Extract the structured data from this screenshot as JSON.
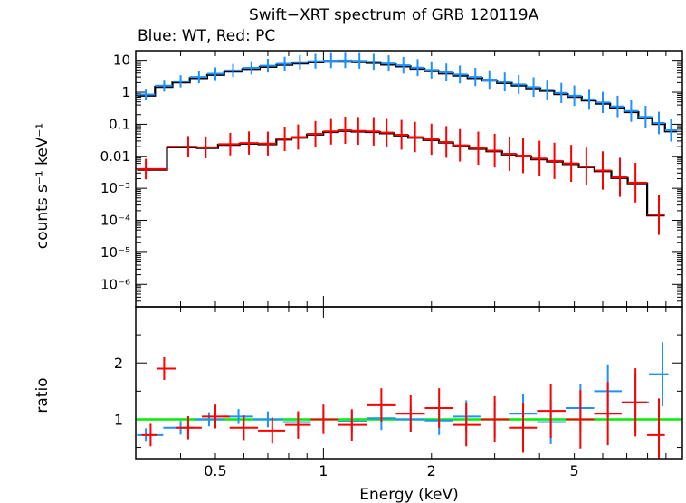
{
  "chart_data": [
    {
      "type": "scatter",
      "title": "Swift−XRT spectrum of GRB 120119A",
      "subtitle": "Blue: WT, Red: PC",
      "xlabel": "Energy (keV)",
      "ylabel": "counts s⁻¹ keV⁻¹",
      "xscale": "log",
      "yscale": "log",
      "xlim": [
        0.3,
        10
      ],
      "ylim": [
        2e-07,
        20
      ],
      "x_ticks": [
        {
          "value": 0.5,
          "label": "0.5"
        },
        {
          "value": 1,
          "label": "1"
        },
        {
          "value": 2,
          "label": "2"
        },
        {
          "value": 5,
          "label": "5"
        }
      ],
      "y_ticks": [
        {
          "value": 10,
          "label": "10"
        },
        {
          "value": 1,
          "label": "1"
        },
        {
          "value": 0.1,
          "label": "0.1"
        },
        {
          "value": 0.01,
          "label": "0.01"
        },
        {
          "value": 0.001,
          "label": "10⁻³"
        },
        {
          "value": 0.0001,
          "label": "10⁻⁴"
        },
        {
          "value": 1e-05,
          "label": "10⁻⁵"
        },
        {
          "value": 1e-06,
          "label": "10⁻⁶"
        }
      ],
      "series": [
        {
          "color": "#1e90ff",
          "points": [
            {
              "x": 0.32,
              "y": 0.85
            },
            {
              "x": 0.36,
              "y": 1.6
            },
            {
              "x": 0.4,
              "y": 2.2
            },
            {
              "x": 0.45,
              "y": 3.0
            },
            {
              "x": 0.5,
              "y": 3.8
            },
            {
              "x": 0.56,
              "y": 4.8
            },
            {
              "x": 0.63,
              "y": 5.8
            },
            {
              "x": 0.7,
              "y": 6.8
            },
            {
              "x": 0.78,
              "y": 7.8
            },
            {
              "x": 0.86,
              "y": 8.7
            },
            {
              "x": 0.95,
              "y": 9.4
            },
            {
              "x": 1.05,
              "y": 9.8
            },
            {
              "x": 1.15,
              "y": 9.9
            },
            {
              "x": 1.26,
              "y": 9.6
            },
            {
              "x": 1.38,
              "y": 9.0
            },
            {
              "x": 1.52,
              "y": 8.0
            },
            {
              "x": 1.67,
              "y": 7.0
            },
            {
              "x": 1.83,
              "y": 5.9
            },
            {
              "x": 2.0,
              "y": 5.0
            },
            {
              "x": 2.2,
              "y": 4.2
            },
            {
              "x": 2.4,
              "y": 3.6
            },
            {
              "x": 2.65,
              "y": 3.0
            },
            {
              "x": 2.9,
              "y": 2.5
            },
            {
              "x": 3.2,
              "y": 2.1
            },
            {
              "x": 3.5,
              "y": 1.75
            },
            {
              "x": 3.85,
              "y": 1.45
            },
            {
              "x": 4.2,
              "y": 1.2
            },
            {
              "x": 4.6,
              "y": 0.95
            },
            {
              "x": 5.0,
              "y": 0.78
            },
            {
              "x": 5.5,
              "y": 0.6
            },
            {
              "x": 6.0,
              "y": 0.48
            },
            {
              "x": 6.6,
              "y": 0.36
            },
            {
              "x": 7.2,
              "y": 0.26
            },
            {
              "x": 7.9,
              "y": 0.17
            },
            {
              "x": 8.6,
              "y": 0.11
            },
            {
              "x": 9.3,
              "y": 0.065
            }
          ]
        },
        {
          "color": "#ff0000",
          "points": [
            {
              "x": 0.32,
              "y": 0.004
            },
            {
              "x": 0.42,
              "y": 0.02
            },
            {
              "x": 0.47,
              "y": 0.019
            },
            {
              "x": 0.55,
              "y": 0.024
            },
            {
              "x": 0.62,
              "y": 0.026
            },
            {
              "x": 0.7,
              "y": 0.025
            },
            {
              "x": 0.78,
              "y": 0.035
            },
            {
              "x": 0.85,
              "y": 0.04
            },
            {
              "x": 0.95,
              "y": 0.05
            },
            {
              "x": 1.05,
              "y": 0.06
            },
            {
              "x": 1.15,
              "y": 0.065
            },
            {
              "x": 1.25,
              "y": 0.062
            },
            {
              "x": 1.38,
              "y": 0.06
            },
            {
              "x": 1.5,
              "y": 0.055
            },
            {
              "x": 1.65,
              "y": 0.047
            },
            {
              "x": 1.8,
              "y": 0.04
            },
            {
              "x": 2.0,
              "y": 0.034
            },
            {
              "x": 2.2,
              "y": 0.028
            },
            {
              "x": 2.4,
              "y": 0.022
            },
            {
              "x": 2.7,
              "y": 0.018
            },
            {
              "x": 3.0,
              "y": 0.015
            },
            {
              "x": 3.3,
              "y": 0.012
            },
            {
              "x": 3.6,
              "y": 0.0105
            },
            {
              "x": 4.0,
              "y": 0.0085
            },
            {
              "x": 4.4,
              "y": 0.0072
            },
            {
              "x": 4.9,
              "y": 0.006
            },
            {
              "x": 5.4,
              "y": 0.0048
            },
            {
              "x": 6.0,
              "y": 0.0036
            },
            {
              "x": 6.7,
              "y": 0.0022
            },
            {
              "x": 7.4,
              "y": 0.0015
            },
            {
              "x": 8.6,
              "y": 0.00015
            }
          ]
        }
      ]
    },
    {
      "type": "scatter",
      "xlabel": "Energy (keV)",
      "ylabel": "ratio",
      "xscale": "log",
      "xlim": [
        0.3,
        10
      ],
      "ylim": [
        0.3,
        3.0
      ],
      "y_ticks": [
        {
          "value": 1,
          "label": "1"
        },
        {
          "value": 2,
          "label": "2"
        }
      ],
      "reference_line": {
        "y": 1,
        "color": "#00ee00"
      },
      "series": [
        {
          "color": "#1e90ff",
          "points": [
            {
              "x": 0.32,
              "y": 0.72
            },
            {
              "x": 0.4,
              "y": 0.85
            },
            {
              "x": 0.48,
              "y": 1.0
            },
            {
              "x": 0.58,
              "y": 1.05
            },
            {
              "x": 0.7,
              "y": 1.0
            },
            {
              "x": 0.85,
              "y": 0.95
            },
            {
              "x": 1.0,
              "y": 1.0
            },
            {
              "x": 1.2,
              "y": 0.96
            },
            {
              "x": 1.45,
              "y": 1.02
            },
            {
              "x": 1.75,
              "y": 1.0
            },
            {
              "x": 2.1,
              "y": 0.98
            },
            {
              "x": 2.5,
              "y": 1.05
            },
            {
              "x": 3.0,
              "y": 1.0
            },
            {
              "x": 3.6,
              "y": 1.1
            },
            {
              "x": 4.3,
              "y": 0.95
            },
            {
              "x": 5.2,
              "y": 1.2
            },
            {
              "x": 6.2,
              "y": 1.5
            },
            {
              "x": 7.4,
              "y": 1.3
            },
            {
              "x": 8.8,
              "y": 1.8
            }
          ]
        },
        {
          "color": "#ff0000",
          "points": [
            {
              "x": 0.33,
              "y": 0.72
            },
            {
              "x": 0.36,
              "y": 1.9
            },
            {
              "x": 0.42,
              "y": 0.85
            },
            {
              "x": 0.5,
              "y": 1.05
            },
            {
              "x": 0.6,
              "y": 0.85
            },
            {
              "x": 0.72,
              "y": 0.8
            },
            {
              "x": 0.85,
              "y": 0.9
            },
            {
              "x": 1.0,
              "y": 1.0
            },
            {
              "x": 1.2,
              "y": 0.9
            },
            {
              "x": 1.45,
              "y": 1.25
            },
            {
              "x": 1.75,
              "y": 1.1
            },
            {
              "x": 2.1,
              "y": 1.2
            },
            {
              "x": 2.5,
              "y": 0.9
            },
            {
              "x": 3.0,
              "y": 1.0
            },
            {
              "x": 3.6,
              "y": 0.85
            },
            {
              "x": 4.3,
              "y": 1.15
            },
            {
              "x": 5.2,
              "y": 1.0
            },
            {
              "x": 6.2,
              "y": 1.1
            },
            {
              "x": 7.4,
              "y": 1.3
            },
            {
              "x": 8.6,
              "y": 0.72
            }
          ]
        }
      ]
    }
  ]
}
